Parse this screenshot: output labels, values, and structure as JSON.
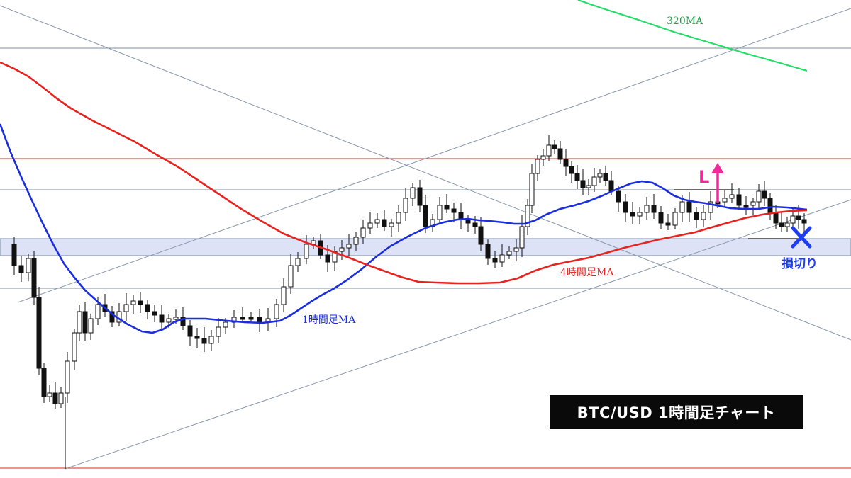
{
  "title": "BTC/USD  1時間足チャート",
  "chart_data": {
    "type": "candlestick",
    "title": "BTC/USD  1時間足チャート",
    "ylim": [
      0,
      675
    ],
    "colors": {
      "up_candle": "#ffffff",
      "down_candle": "#111111",
      "ma_1h": "#1a2ee0",
      "ma_4h": "#e8231f",
      "ma_320": "#22dd66",
      "zone_fill": "#dde2f7",
      "trendline": "#8a98ad",
      "horizontal_line": "#7d8ea6",
      "resistance_line": "#e8231f",
      "entry_arrow": "#ee2a9a",
      "stop_mark": "#1d3ef0"
    },
    "annotations": {
      "ma_320_label": "320MA",
      "ma_1h_label": "1時間足MA",
      "ma_4h_label": "4時間足MA",
      "entry_label": "L",
      "stop_loss_label": "損切り"
    },
    "series": [
      {
        "name": "1時間足MA",
        "values": [
          [
            0,
            175
          ],
          [
            15,
            215
          ],
          [
            30,
            250
          ],
          [
            45,
            283
          ],
          [
            60,
            315
          ],
          [
            75,
            345
          ],
          [
            90,
            372
          ],
          [
            105,
            392
          ],
          [
            120,
            410
          ],
          [
            140,
            428
          ],
          [
            160,
            445
          ],
          [
            180,
            458
          ],
          [
            200,
            468
          ],
          [
            215,
            470
          ],
          [
            230,
            465
          ],
          [
            245,
            455
          ],
          [
            260,
            450
          ],
          [
            290,
            450
          ],
          [
            320,
            453
          ],
          [
            345,
            455
          ],
          [
            370,
            456
          ],
          [
            395,
            453
          ],
          [
            410,
            445
          ],
          [
            425,
            435
          ],
          [
            440,
            425
          ],
          [
            455,
            416
          ],
          [
            470,
            408
          ],
          [
            490,
            395
          ],
          [
            510,
            380
          ],
          [
            530,
            363
          ],
          [
            550,
            348
          ],
          [
            575,
            334
          ],
          [
            600,
            322
          ],
          [
            625,
            314
          ],
          [
            645,
            310
          ],
          [
            660,
            309
          ],
          [
            675,
            311
          ],
          [
            690,
            312
          ],
          [
            710,
            314
          ],
          [
            725,
            316
          ],
          [
            740,
            316
          ],
          [
            755,
            311
          ],
          [
            770,
            303
          ],
          [
            790,
            295
          ],
          [
            810,
            290
          ],
          [
            830,
            284
          ],
          [
            850,
            276
          ],
          [
            870,
            267
          ],
          [
            890,
            259
          ],
          [
            905,
            256
          ],
          [
            920,
            258
          ],
          [
            935,
            266
          ],
          [
            950,
            276
          ],
          [
            965,
            282
          ],
          [
            980,
            285
          ],
          [
            995,
            287
          ],
          [
            1010,
            290
          ],
          [
            1030,
            294
          ],
          [
            1050,
            295
          ],
          [
            1070,
            295
          ],
          [
            1090,
            292
          ],
          [
            1110,
            293
          ],
          [
            1138,
            296
          ]
        ]
      },
      {
        "name": "4時間足MA",
        "values": [
          [
            0,
            88
          ],
          [
            20,
            97
          ],
          [
            40,
            108
          ],
          [
            60,
            123
          ],
          [
            80,
            139
          ],
          [
            100,
            153
          ],
          [
            130,
            170
          ],
          [
            160,
            185
          ],
          [
            190,
            200
          ],
          [
            220,
            218
          ],
          [
            250,
            235
          ],
          [
            280,
            255
          ],
          [
            310,
            275
          ],
          [
            340,
            295
          ],
          [
            370,
            313
          ],
          [
            400,
            330
          ],
          [
            430,
            342
          ],
          [
            460,
            352
          ],
          [
            490,
            363
          ],
          [
            515,
            373
          ],
          [
            540,
            382
          ],
          [
            565,
            391
          ],
          [
            590,
            398
          ],
          [
            615,
            399
          ],
          [
            645,
            400
          ],
          [
            675,
            400
          ],
          [
            705,
            399
          ],
          [
            730,
            393
          ],
          [
            755,
            382
          ],
          [
            780,
            374
          ],
          [
            805,
            369
          ],
          [
            830,
            364
          ],
          [
            855,
            357
          ],
          [
            880,
            350
          ],
          [
            905,
            344
          ],
          [
            930,
            338
          ],
          [
            955,
            333
          ],
          [
            980,
            328
          ],
          [
            1000,
            322
          ],
          [
            1025,
            315
          ],
          [
            1050,
            308
          ],
          [
            1075,
            303
          ],
          [
            1095,
            300
          ],
          [
            1115,
            298
          ],
          [
            1138,
            297
          ]
        ]
      },
      {
        "name": "320MA",
        "values": [
          [
            815,
            0
          ],
          [
            850,
            12
          ],
          [
            900,
            28
          ],
          [
            950,
            45
          ],
          [
            1000,
            60
          ],
          [
            1050,
            75
          ],
          [
            1100,
            89
          ],
          [
            1138,
            100
          ]
        ]
      }
    ]
  }
}
